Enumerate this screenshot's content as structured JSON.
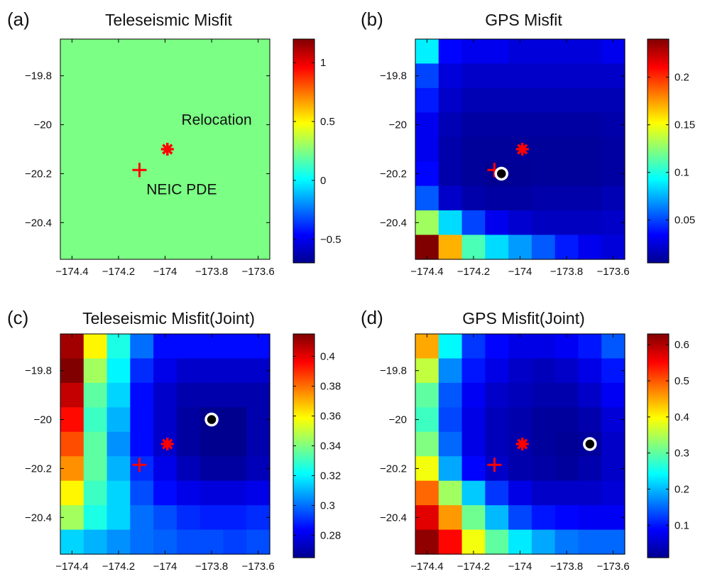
{
  "colormap": [
    "#00008f",
    "#0000ff",
    "#0080ff",
    "#00ffff",
    "#80ff80",
    "#ffff00",
    "#ff8000",
    "#ff0000",
    "#800000"
  ],
  "chart_data": [
    {
      "type": "heatmap",
      "panel_label": "(a)",
      "title": "Teleseismic Misfit",
      "xlabel": "",
      "ylabel": "",
      "xlim": [
        -174.45,
        -173.55
      ],
      "ylim": [
        -20.55,
        -19.65
      ],
      "xticks": [
        -174.4,
        -174.2,
        -174,
        -173.8,
        -173.6
      ],
      "yticks": [
        -19.8,
        -20,
        -20.2,
        -20.4
      ],
      "xtick_labels": [
        "−174.4",
        "−174.2",
        "−174",
        "−173.8",
        "−173.6"
      ],
      "ytick_labels": [
        "−19.8",
        "−20",
        "−20.2",
        "−20.4"
      ],
      "colorbar": {
        "range": [
          -0.7,
          1.2
        ],
        "ticks": [
          -0.5,
          0,
          0.5,
          1
        ],
        "tick_labels": [
          "−0.5",
          "0",
          "0.5",
          "1"
        ]
      },
      "uniform_value": 0.24,
      "grid": [],
      "markers": [
        {
          "type": "cross",
          "x": -174.11,
          "y": -20.185
        },
        {
          "type": "star",
          "x": -173.99,
          "y": -20.1
        }
      ],
      "annotations": [
        {
          "text": "Relocation",
          "x": -173.93,
          "y": -20.0
        },
        {
          "text": "NEIC PDE",
          "x": -174.08,
          "y": -20.285
        }
      ]
    },
    {
      "type": "heatmap",
      "panel_label": "(b)",
      "title": "GPS Misfit",
      "xlabel": "",
      "ylabel": "",
      "xlim": [
        -174.45,
        -173.55
      ],
      "ylim": [
        -20.55,
        -19.65
      ],
      "xticks": [
        -174.4,
        -174.2,
        -174,
        -173.8,
        -173.6
      ],
      "yticks": [
        -19.8,
        -20,
        -20.2,
        -20.4
      ],
      "xtick_labels": [
        "−174.4",
        "−174.2",
        "−174",
        "−173.8",
        "−173.6"
      ],
      "ytick_labels": [
        "−19.8",
        "−20",
        "−20.2",
        "−20.4"
      ],
      "colorbar": {
        "range": [
          0.005,
          0.24
        ],
        "ticks": [
          0.05,
          0.1,
          0.15,
          0.2
        ],
        "tick_labels": [
          "0.05",
          "0.1",
          "0.15",
          "0.2"
        ]
      },
      "grid": [
        [
          0.09,
          0.035,
          0.03,
          0.03,
          0.025,
          0.025,
          0.025,
          0.025,
          0.03
        ],
        [
          0.05,
          0.025,
          0.02,
          0.02,
          0.02,
          0.02,
          0.02,
          0.02,
          0.02
        ],
        [
          0.04,
          0.02,
          0.015,
          0.015,
          0.015,
          0.015,
          0.015,
          0.015,
          0.015
        ],
        [
          0.03,
          0.015,
          0.01,
          0.01,
          0.01,
          0.01,
          0.01,
          0.01,
          0.012
        ],
        [
          0.03,
          0.012,
          0.008,
          0.008,
          0.008,
          0.008,
          0.008,
          0.008,
          0.01
        ],
        [
          0.035,
          0.012,
          0.008,
          0.006,
          0.007,
          0.008,
          0.008,
          0.008,
          0.01
        ],
        [
          0.055,
          0.02,
          0.012,
          0.01,
          0.01,
          0.012,
          0.012,
          0.012,
          0.015
        ],
        [
          0.13,
          0.085,
          0.05,
          0.03,
          0.022,
          0.018,
          0.018,
          0.018,
          0.02
        ],
        [
          0.24,
          0.17,
          0.11,
          0.085,
          0.07,
          0.055,
          0.04,
          0.03,
          0.025
        ]
      ],
      "markers": [
        {
          "type": "cross",
          "x": -174.11,
          "y": -20.185
        },
        {
          "type": "star",
          "x": -173.99,
          "y": -20.1
        },
        {
          "type": "circle",
          "x": -174.08,
          "y": -20.2
        }
      ],
      "annotations": []
    },
    {
      "type": "heatmap",
      "panel_label": "(c)",
      "title": "Teleseismic Misfit(Joint)",
      "xlabel": "",
      "ylabel": "",
      "xlim": [
        -174.45,
        -173.55
      ],
      "ylim": [
        -20.55,
        -19.65
      ],
      "xticks": [
        -174.4,
        -174.2,
        -174,
        -173.8,
        -173.6
      ],
      "yticks": [
        -19.8,
        -20,
        -20.2,
        -20.4
      ],
      "xtick_labels": [
        "−174.4",
        "−174.2",
        "−174",
        "−173.8",
        "−173.6"
      ],
      "ytick_labels": [
        "−19.8",
        "−20",
        "−20.2",
        "−20.4"
      ],
      "colorbar": {
        "range": [
          0.265,
          0.415
        ],
        "ticks": [
          0.28,
          0.3,
          0.32,
          0.34,
          0.36,
          0.38,
          0.4
        ],
        "tick_labels": [
          "0.28",
          "0.3",
          "0.32",
          "0.34",
          "0.36",
          "0.38",
          "0.4"
        ]
      },
      "grid": [
        [
          0.41,
          0.36,
          0.325,
          0.3,
          0.285,
          0.285,
          0.285,
          0.285,
          0.285
        ],
        [
          0.415,
          0.345,
          0.32,
          0.29,
          0.28,
          0.275,
          0.275,
          0.275,
          0.275
        ],
        [
          0.405,
          0.335,
          0.315,
          0.285,
          0.275,
          0.27,
          0.27,
          0.27,
          0.27
        ],
        [
          0.395,
          0.33,
          0.31,
          0.285,
          0.275,
          0.268,
          0.265,
          0.265,
          0.27
        ],
        [
          0.385,
          0.335,
          0.305,
          0.285,
          0.275,
          0.268,
          0.265,
          0.265,
          0.27
        ],
        [
          0.375,
          0.335,
          0.31,
          0.29,
          0.28,
          0.272,
          0.268,
          0.268,
          0.272
        ],
        [
          0.36,
          0.33,
          0.315,
          0.295,
          0.285,
          0.28,
          0.278,
          0.278,
          0.28
        ],
        [
          0.345,
          0.325,
          0.315,
          0.3,
          0.295,
          0.29,
          0.288,
          0.288,
          0.29
        ],
        [
          0.315,
          0.31,
          0.305,
          0.3,
          0.298,
          0.295,
          0.295,
          0.293,
          0.295
        ]
      ],
      "markers": [
        {
          "type": "cross",
          "x": -174.11,
          "y": -20.185
        },
        {
          "type": "star",
          "x": -173.99,
          "y": -20.1
        },
        {
          "type": "circle",
          "x": -173.8,
          "y": -20.0
        }
      ],
      "annotations": []
    },
    {
      "type": "heatmap",
      "panel_label": "(d)",
      "title": "GPS Misfit(Joint)",
      "xlabel": "",
      "ylabel": "",
      "xlim": [
        -174.45,
        -173.55
      ],
      "ylim": [
        -20.55,
        -19.65
      ],
      "xticks": [
        -174.4,
        -174.2,
        -174,
        -173.8,
        -173.6
      ],
      "yticks": [
        -19.8,
        -20,
        -20.2,
        -20.4
      ],
      "xtick_labels": [
        "−174.4",
        "−174.2",
        "−174",
        "−173.8",
        "−173.6"
      ],
      "ytick_labels": [
        "−19.8",
        "−20",
        "−20.2",
        "−20.4"
      ],
      "colorbar": {
        "range": [
          0.01,
          0.63
        ],
        "ticks": [
          0.1,
          0.2,
          0.3,
          0.4,
          0.5,
          0.6
        ],
        "tick_labels": [
          "0.1",
          "0.2",
          "0.3",
          "0.4",
          "0.5",
          "0.6"
        ]
      },
      "grid": [
        [
          0.45,
          0.24,
          0.12,
          0.09,
          0.07,
          0.07,
          0.08,
          0.1,
          0.14
        ],
        [
          0.36,
          0.17,
          0.1,
          0.07,
          0.05,
          0.04,
          0.05,
          0.07,
          0.1
        ],
        [
          0.3,
          0.14,
          0.08,
          0.05,
          0.04,
          0.03,
          0.03,
          0.05,
          0.08
        ],
        [
          0.28,
          0.13,
          0.07,
          0.04,
          0.03,
          0.02,
          0.02,
          0.03,
          0.06
        ],
        [
          0.32,
          0.15,
          0.07,
          0.04,
          0.03,
          0.02,
          0.015,
          0.02,
          0.05
        ],
        [
          0.39,
          0.19,
          0.09,
          0.05,
          0.03,
          0.025,
          0.02,
          0.03,
          0.05
        ],
        [
          0.49,
          0.34,
          0.21,
          0.12,
          0.07,
          0.05,
          0.05,
          0.05,
          0.06
        ],
        [
          0.57,
          0.46,
          0.31,
          0.2,
          0.13,
          0.1,
          0.09,
          0.08,
          0.08
        ],
        [
          0.62,
          0.55,
          0.39,
          0.3,
          0.23,
          0.19,
          0.16,
          0.15,
          0.15
        ]
      ],
      "markers": [
        {
          "type": "cross",
          "x": -174.11,
          "y": -20.185
        },
        {
          "type": "star",
          "x": -173.99,
          "y": -20.1
        },
        {
          "type": "circle",
          "x": -173.7,
          "y": -20.1
        }
      ],
      "annotations": []
    }
  ]
}
